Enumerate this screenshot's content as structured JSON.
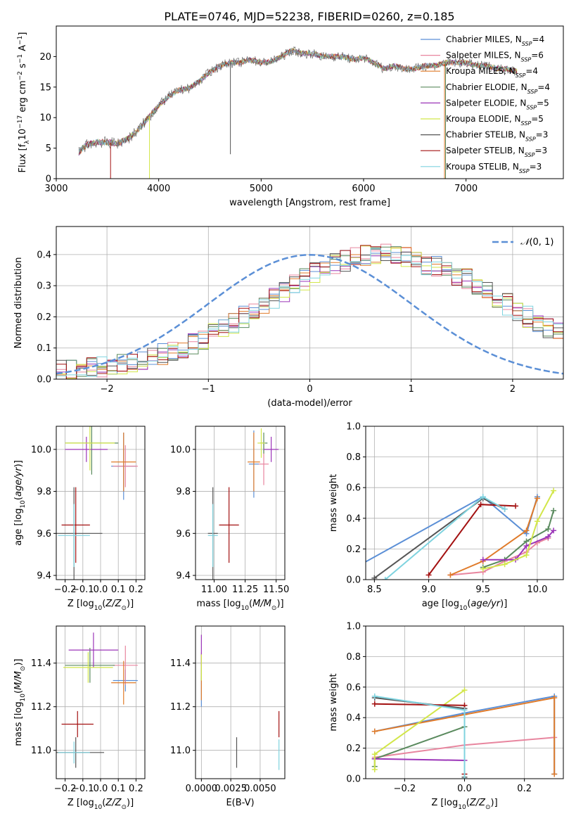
{
  "figure_title": "PLATE=0746, MJD=52238, FIBERID=0260, z=0.185",
  "colors": {
    "Chabrier MILES": "#5b8fd6",
    "Salpeter MILES": "#e8869f",
    "Kroupa MILES": "#e07b2a",
    "Chabrier ELODIE": "#5a8a5e",
    "Salpeter ELODIE": "#9b35b8",
    "Kroupa ELODIE": "#d2e64a",
    "Chabrier STELIB": "#555555",
    "Salpeter STELIB": "#a31111",
    "Kroupa STELIB": "#7fd3df",
    "gaussian": "#5b8fd6",
    "grid": "#b0b0b0"
  },
  "chart_data": [
    {
      "id": "spectrum",
      "type": "line",
      "xlabel": "wavelength [Angstrom, rest frame]",
      "ylabel": "Flux [f_λ 10^-17 erg cm^-2 s^-1 A^-1]",
      "xlim": [
        3000,
        7950
      ],
      "ylim": [
        0,
        25
      ],
      "xticks": [
        3000,
        4000,
        5000,
        6000,
        7000
      ],
      "yticks": [
        0,
        5,
        10,
        15,
        20
      ],
      "grid": false,
      "legend_position": "top-right",
      "legend": [
        {
          "series": "Chabrier MILES",
          "text": "Chabrier MILES, N_SSP=4"
        },
        {
          "series": "Salpeter MILES",
          "text": "Salpeter MILES, N_SSP=6"
        },
        {
          "series": "Kroupa MILES",
          "text": "Kroupa MILES, N_SSP=4"
        },
        {
          "series": "Chabrier ELODIE",
          "text": "Chabrier ELODIE, N_SSP=4"
        },
        {
          "series": "Salpeter ELODIE",
          "text": "Salpeter ELODIE, N_SSP=5"
        },
        {
          "series": "Kroupa ELODIE",
          "text": "Kroupa ELODIE, N_SSP=5"
        },
        {
          "series": "Chabrier STELIB",
          "text": "Chabrier STELIB, N_SSP=3"
        },
        {
          "series": "Salpeter STELIB",
          "text": "Salpeter STELIB, N_SSP=3"
        },
        {
          "series": "Kroupa STELIB",
          "text": "Kroupa STELIB, N_SSP=3"
        }
      ],
      "continuum": {
        "x": [
          3220,
          3300,
          3400,
          3500,
          3600,
          3700,
          3800,
          3900,
          4000,
          4100,
          4200,
          4300,
          4400,
          4500,
          4600,
          4700,
          4800,
          4900,
          5000,
          5100,
          5200,
          5300,
          5400,
          5500,
          5600,
          5700,
          5800,
          5900,
          6000,
          6100,
          6200,
          6300,
          6400,
          6500,
          6600,
          6700,
          6800,
          6900,
          7000,
          7100,
          7200,
          7300,
          7400,
          7500
        ],
        "y": [
          4.3,
          5.6,
          6.0,
          5.9,
          5.8,
          6.5,
          8.0,
          10.0,
          12.0,
          13.5,
          14.5,
          14.8,
          16.0,
          17.5,
          18.5,
          19.0,
          19.0,
          19.5,
          19.0,
          19.2,
          20.0,
          21.0,
          20.5,
          20.5,
          20.0,
          20.0,
          20.0,
          19.5,
          19.8,
          19.0,
          18.0,
          18.5,
          18.0,
          18.0,
          18.5,
          18.5,
          19.0,
          19.0,
          19.0,
          18.5,
          18.5,
          18.0,
          18.0,
          17.5
        ]
      },
      "spikes": [
        {
          "x": 3530,
          "y": 0.0,
          "series": "Salpeter STELIB"
        },
        {
          "x": 3910,
          "y": 0.0,
          "series": "Kroupa ELODIE"
        },
        {
          "x": 4700,
          "y": 4.0,
          "series": "Chabrier STELIB"
        },
        {
          "x": 6790,
          "y": 0.0,
          "series": "Kroupa MILES"
        },
        {
          "x": 6800,
          "y": 0.0,
          "series": "Chabrier ELODIE"
        }
      ]
    },
    {
      "id": "residuals",
      "type": "histogram",
      "xlabel": "(data-model)/error",
      "ylabel": "Normed distribution",
      "xlim": [
        -2.5,
        2.5
      ],
      "ylim": [
        0,
        0.49
      ],
      "xticks": [
        -2,
        -1,
        0,
        1,
        2
      ],
      "yticks": [
        0.0,
        0.1,
        0.2,
        0.3,
        0.4
      ],
      "grid": true,
      "bin_width": 0.1,
      "bins_start": -2.5,
      "base_distribution": [
        0.028,
        0.03,
        0.032,
        0.035,
        0.04,
        0.045,
        0.05,
        0.055,
        0.06,
        0.07,
        0.08,
        0.09,
        0.1,
        0.115,
        0.13,
        0.145,
        0.16,
        0.18,
        0.2,
        0.22,
        0.24,
        0.26,
        0.28,
        0.3,
        0.32,
        0.34,
        0.355,
        0.37,
        0.38,
        0.39,
        0.395,
        0.4,
        0.4,
        0.395,
        0.39,
        0.38,
        0.37,
        0.36,
        0.35,
        0.335,
        0.32,
        0.3,
        0.28,
        0.26,
        0.24,
        0.22,
        0.2,
        0.18,
        0.16,
        0.145,
        0.13,
        0.115,
        0.1,
        0.09,
        0.08,
        0.07,
        0.06,
        0.052,
        0.045,
        0.04,
        0.035,
        0.032,
        0.03,
        0.028,
        0.027,
        0.026,
        0.025,
        0.024,
        0.023,
        0.022
      ],
      "legend": [
        {
          "style": "dashed",
          "text": "N(0,1)"
        }
      ]
    },
    {
      "id": "age_vs_Z",
      "type": "errorbar",
      "xlabel": "Z [log10(Z/Z_sun)]",
      "ylabel": "age  [log10(age/yr)]",
      "xlim": [
        -0.25,
        0.25
      ],
      "ylim": [
        9.38,
        10.11
      ],
      "xticks": [
        -0.2,
        -0.1,
        0.0,
        0.1,
        0.2
      ],
      "yticks": [
        9.4,
        9.6,
        9.8,
        10.0
      ],
      "grid": true,
      "points": [
        {
          "series": "Chabrier MILES",
          "x": 0.13,
          "y": 9.92,
          "xerr": 0.07,
          "yerr": 0.16
        },
        {
          "series": "Salpeter MILES",
          "x": 0.14,
          "y": 9.92,
          "xerr": 0.07,
          "yerr": 0.1
        },
        {
          "series": "Kroupa MILES",
          "x": 0.13,
          "y": 9.94,
          "xerr": 0.07,
          "yerr": 0.14
        },
        {
          "series": "Chabrier ELODIE",
          "x": -0.05,
          "y": 10.03,
          "xerr": 0.15,
          "yerr": 0.15
        },
        {
          "series": "Salpeter ELODIE",
          "x": -0.08,
          "y": 10.0,
          "xerr": 0.12,
          "yerr": 0.06
        },
        {
          "series": "Kroupa ELODIE",
          "x": -0.06,
          "y": 10.03,
          "xerr": 0.14,
          "yerr": 0.13
        },
        {
          "series": "Chabrier STELIB",
          "x": -0.15,
          "y": 9.6,
          "xerr": 0.16,
          "yerr": 0.22
        },
        {
          "series": "Salpeter STELIB",
          "x": -0.14,
          "y": 9.64,
          "xerr": 0.08,
          "yerr": 0.18
        },
        {
          "series": "Kroupa STELIB",
          "x": -0.15,
          "y": 9.59,
          "xerr": 0.09,
          "yerr": 0.15
        }
      ]
    },
    {
      "id": "age_vs_mass",
      "type": "errorbar",
      "xlabel": "mass [log10(M/M_sun)]",
      "ylabel": "",
      "xlim": [
        10.85,
        11.57
      ],
      "ylim": [
        9.38,
        10.11
      ],
      "xticks": [
        11.0,
        11.25,
        11.5
      ],
      "yticks": [
        9.4,
        9.6,
        9.8,
        10.0
      ],
      "grid": true,
      "points": [
        {
          "series": "Chabrier MILES",
          "x": 11.32,
          "y": 9.93,
          "xerr": 0.04,
          "yerr": 0.16
        },
        {
          "series": "Salpeter MILES",
          "x": 11.4,
          "y": 9.93,
          "xerr": 0.04,
          "yerr": 0.1
        },
        {
          "series": "Kroupa MILES",
          "x": 11.32,
          "y": 9.94,
          "xerr": 0.05,
          "yerr": 0.14
        },
        {
          "series": "Chabrier ELODIE",
          "x": 11.4,
          "y": 10.03,
          "xerr": 0.03,
          "yerr": 0.05
        },
        {
          "series": "Salpeter ELODIE",
          "x": 11.46,
          "y": 10.0,
          "xerr": 0.06,
          "yerr": 0.06
        },
        {
          "series": "Kroupa ELODIE",
          "x": 11.38,
          "y": 10.03,
          "xerr": 0.03,
          "yerr": 0.07
        },
        {
          "series": "Chabrier STELIB",
          "x": 10.99,
          "y": 9.6,
          "xerr": 0.04,
          "yerr": 0.22
        },
        {
          "series": "Salpeter STELIB",
          "x": 11.12,
          "y": 9.64,
          "xerr": 0.08,
          "yerr": 0.18
        },
        {
          "series": "Kroupa STELIB",
          "x": 10.99,
          "y": 9.59,
          "xerr": 0.04,
          "yerr": 0.15
        }
      ]
    },
    {
      "id": "weight_vs_age",
      "type": "line",
      "xlabel": "age  [log10(age/yr)]",
      "ylabel": "mass weight",
      "xlim": [
        8.42,
        10.24
      ],
      "ylim": [
        0,
        1
      ],
      "xticks": [
        8.5,
        9.0,
        9.5,
        10.0
      ],
      "yticks": [
        0.0,
        0.2,
        0.4,
        0.6,
        0.8,
        1.0
      ],
      "grid": true,
      "series": [
        {
          "series": "Chabrier MILES",
          "x": [
            8.2,
            9.5,
            9.9,
            10.0
          ],
          "y": [
            0.03,
            0.54,
            0.3,
            0.54
          ]
        },
        {
          "series": "Salpeter MILES",
          "x": [
            9.2,
            9.5,
            9.7,
            9.9,
            10.0,
            10.1
          ],
          "y": [
            0.03,
            0.05,
            0.12,
            0.18,
            0.24,
            0.27
          ]
        },
        {
          "series": "Kroupa MILES",
          "x": [
            9.2,
            9.5,
            9.9,
            10.0
          ],
          "y": [
            0.03,
            0.12,
            0.32,
            0.53
          ]
        },
        {
          "series": "Chabrier ELODIE",
          "x": [
            9.5,
            9.7,
            9.9,
            10.1,
            10.15
          ],
          "y": [
            0.08,
            0.13,
            0.25,
            0.33,
            0.45
          ]
        },
        {
          "series": "Salpeter ELODIE",
          "x": [
            9.5,
            9.8,
            9.9,
            10.1,
            10.15
          ],
          "y": [
            0.13,
            0.13,
            0.22,
            0.28,
            0.32
          ]
        },
        {
          "series": "Kroupa ELODIE",
          "x": [
            9.5,
            9.7,
            9.9,
            10.0,
            10.15
          ],
          "y": [
            0.07,
            0.1,
            0.16,
            0.38,
            0.58
          ]
        },
        {
          "series": "Chabrier STELIB",
          "x": [
            8.5,
            9.5,
            9.7
          ],
          "y": [
            0.01,
            0.53,
            0.46
          ]
        },
        {
          "series": "Salpeter STELIB",
          "x": [
            9.0,
            9.48,
            9.8
          ],
          "y": [
            0.03,
            0.49,
            0.48
          ]
        },
        {
          "series": "Kroupa STELIB",
          "x": [
            8.6,
            9.5,
            9.7
          ],
          "y": [
            0.0,
            0.54,
            0.46
          ]
        }
      ]
    },
    {
      "id": "mass_vs_Z",
      "type": "errorbar",
      "xlabel": "Z [log10(Z/Z_sun)]",
      "ylabel": "mass [log10(M/M_sun)]",
      "xlim": [
        -0.25,
        0.25
      ],
      "ylim": [
        10.87,
        11.57
      ],
      "xticks": [
        -0.2,
        -0.1,
        0.0,
        0.1,
        0.2
      ],
      "yticks": [
        11.0,
        11.2,
        11.4
      ],
      "grid": true,
      "points": [
        {
          "series": "Chabrier MILES",
          "x": 0.14,
          "y": 11.32,
          "xerr": 0.07,
          "yerr": 0.05
        },
        {
          "series": "Salpeter MILES",
          "x": 0.14,
          "y": 11.39,
          "xerr": 0.07,
          "yerr": 0.09
        },
        {
          "series": "Kroupa MILES",
          "x": 0.13,
          "y": 11.31,
          "xerr": 0.07,
          "yerr": 0.1
        },
        {
          "series": "Chabrier ELODIE",
          "x": -0.06,
          "y": 11.39,
          "xerr": 0.14,
          "yerr": 0.08
        },
        {
          "series": "Salpeter ELODIE",
          "x": -0.04,
          "y": 11.46,
          "xerr": 0.14,
          "yerr": 0.08
        },
        {
          "series": "Kroupa ELODIE",
          "x": -0.07,
          "y": 11.38,
          "xerr": 0.14,
          "yerr": 0.07
        },
        {
          "series": "Chabrier STELIB",
          "x": -0.14,
          "y": 10.99,
          "xerr": 0.16,
          "yerr": 0.07
        },
        {
          "series": "Salpeter STELIB",
          "x": -0.13,
          "y": 11.12,
          "xerr": 0.09,
          "yerr": 0.06
        },
        {
          "series": "Kroupa STELIB",
          "x": -0.15,
          "y": 10.99,
          "xerr": 0.09,
          "yerr": 0.05
        }
      ]
    },
    {
      "id": "mass_vs_EBV",
      "type": "errorbar",
      "xlabel": "E(B-V)",
      "ylabel": "",
      "xlim": [
        -0.0005,
        0.0071
      ],
      "ylim": [
        10.87,
        11.57
      ],
      "xticks": [
        0.0,
        0.0025,
        0.005
      ],
      "yticks": [
        11.0,
        11.2,
        11.4
      ],
      "grid": true,
      "points": [
        {
          "series": "Chabrier MILES",
          "x": 0.0,
          "y": 11.27,
          "xerr": 0.0,
          "yerr": 0.07
        },
        {
          "series": "Salpeter MILES",
          "x": 0.0,
          "y": 11.39,
          "xerr": 0.0,
          "yerr": 0.06
        },
        {
          "series": "Kroupa MILES",
          "x": 0.0,
          "y": 11.3,
          "xerr": 0.0,
          "yerr": 0.07
        },
        {
          "series": "Chabrier ELODIE",
          "x": 0.0,
          "y": 11.38,
          "xerr": 0.0,
          "yerr": 0.06
        },
        {
          "series": "Salpeter ELODIE",
          "x": 0.0,
          "y": 11.46,
          "xerr": 0.0,
          "yerr": 0.07
        },
        {
          "series": "Kroupa ELODIE",
          "x": 0.0,
          "y": 11.38,
          "xerr": 0.0,
          "yerr": 0.06
        },
        {
          "series": "Chabrier STELIB",
          "x": 0.003,
          "y": 10.99,
          "xerr": 0.0,
          "yerr": 0.07
        },
        {
          "series": "Salpeter STELIB",
          "x": 0.0066,
          "y": 11.12,
          "xerr": 0.0,
          "yerr": 0.06
        },
        {
          "series": "Kroupa STELIB",
          "x": 0.0066,
          "y": 10.98,
          "xerr": 0.0,
          "yerr": 0.07
        }
      ]
    },
    {
      "id": "weight_vs_Z",
      "type": "line",
      "xlabel": "Z [log10(Z/Z_sun)]",
      "ylabel": "mass weight",
      "xlim": [
        -0.33,
        0.33
      ],
      "ylim": [
        0,
        1
      ],
      "xticks": [
        -0.2,
        0.0,
        0.2
      ],
      "yticks": [
        0.0,
        0.2,
        0.4,
        0.6,
        0.8,
        1.0
      ],
      "grid": true,
      "series": [
        {
          "series": "Chabrier MILES",
          "x": [
            -0.3,
            0.0,
            0.3,
            0.3
          ],
          "y": [
            0.31,
            0.43,
            0.54,
            0.03
          ]
        },
        {
          "series": "Salpeter MILES",
          "x": [
            -0.3,
            0.0,
            0.3
          ],
          "y": [
            0.14,
            0.22,
            0.27
          ]
        },
        {
          "series": "Kroupa MILES",
          "x": [
            -0.3,
            0.0,
            0.3,
            0.3
          ],
          "y": [
            0.31,
            0.42,
            0.53,
            0.03
          ]
        },
        {
          "series": "Chabrier ELODIE",
          "x": [
            -0.3,
            -0.3,
            0.0
          ],
          "y": [
            0.08,
            0.13,
            0.34
          ]
        },
        {
          "series": "Salpeter ELODIE",
          "x": [
            -0.3,
            0.0
          ],
          "y": [
            0.13,
            0.12
          ]
        },
        {
          "series": "Kroupa ELODIE",
          "x": [
            -0.3,
            -0.3,
            0.0
          ],
          "y": [
            0.06,
            0.16,
            0.58
          ]
        },
        {
          "series": "Chabrier STELIB",
          "x": [
            -0.3,
            0.0,
            0.0
          ],
          "y": [
            0.53,
            0.46,
            0.01
          ]
        },
        {
          "series": "Salpeter STELIB",
          "x": [
            -0.3,
            0.0,
            0.0
          ],
          "y": [
            0.49,
            0.48,
            0.03
          ]
        },
        {
          "series": "Kroupa STELIB",
          "x": [
            -0.3,
            0.0,
            0.0
          ],
          "y": [
            0.54,
            0.45,
            0.0
          ]
        }
      ]
    }
  ]
}
